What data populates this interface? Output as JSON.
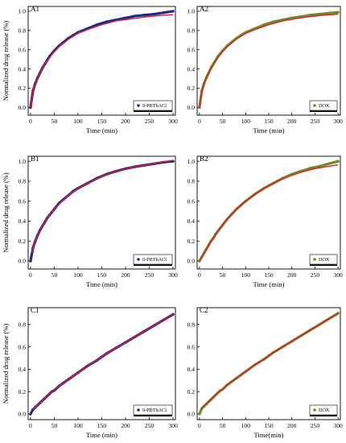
{
  "figure": {
    "colors": {
      "fit_line": "#e8192c",
      "series_blue": "#1c2a8a",
      "series_green": "#6b8e23",
      "axis": "#000000"
    },
    "x_ticks": [
      "0",
      "50",
      "100",
      "150",
      "200",
      "250",
      "300"
    ],
    "y_ticks_A": [
      "0.0",
      "0.2",
      "0.4",
      "0.6",
      "0.8",
      "1.0"
    ],
    "y_ticks_BC": [
      "0.0",
      "0.2",
      "0.4",
      "0.6",
      "0.8",
      "1.0"
    ]
  },
  "chart_data": [
    {
      "panel": "A1",
      "type": "scatter",
      "xlabel": "Time (min)",
      "ylabel": "Normalized drug release (%)",
      "xlim": [
        -5,
        305
      ],
      "ylim": [
        -0.08,
        1.05
      ],
      "series": [
        {
          "name": "9-PBThACl",
          "role": "data",
          "color": "#1c2a8a",
          "x": [
            0,
            5,
            10,
            15,
            20,
            25,
            30,
            35,
            40,
            45,
            50,
            60,
            70,
            80,
            90,
            100,
            120,
            140,
            160,
            180,
            200,
            220,
            240,
            260,
            280,
            300
          ],
          "y": [
            0.0,
            0.17,
            0.25,
            0.31,
            0.36,
            0.41,
            0.45,
            0.49,
            0.53,
            0.56,
            0.59,
            0.64,
            0.68,
            0.72,
            0.75,
            0.78,
            0.82,
            0.86,
            0.89,
            0.91,
            0.93,
            0.95,
            0.96,
            0.97,
            0.985,
            1.0
          ]
        },
        {
          "role": "fit",
          "color": "#e8192c",
          "x": [
            0,
            5,
            10,
            15,
            20,
            25,
            30,
            40,
            50,
            60,
            80,
            100,
            120,
            150,
            180,
            210,
            240,
            270,
            300
          ],
          "y": [
            0.0,
            0.17,
            0.25,
            0.31,
            0.36,
            0.41,
            0.45,
            0.52,
            0.58,
            0.63,
            0.71,
            0.77,
            0.81,
            0.86,
            0.9,
            0.92,
            0.94,
            0.955,
            0.965
          ]
        }
      ]
    },
    {
      "panel": "A2",
      "type": "scatter",
      "xlabel": "Time (min)",
      "ylabel": "",
      "xlim": [
        -5,
        305
      ],
      "ylim": [
        -0.08,
        1.05
      ],
      "series": [
        {
          "name": "DOX",
          "role": "data",
          "color": "#6b8e23",
          "x": [
            0,
            5,
            10,
            15,
            20,
            25,
            30,
            35,
            40,
            45,
            50,
            60,
            70,
            80,
            90,
            100,
            120,
            140,
            160,
            180,
            200,
            220,
            240,
            260,
            280,
            300
          ],
          "y": [
            0.0,
            0.17,
            0.25,
            0.31,
            0.36,
            0.41,
            0.45,
            0.49,
            0.53,
            0.56,
            0.59,
            0.64,
            0.68,
            0.72,
            0.75,
            0.78,
            0.82,
            0.86,
            0.89,
            0.91,
            0.93,
            0.945,
            0.96,
            0.97,
            0.98,
            0.99
          ]
        },
        {
          "role": "fit",
          "color": "#e8192c",
          "x": [
            0,
            5,
            10,
            15,
            20,
            25,
            30,
            40,
            50,
            60,
            80,
            100,
            120,
            150,
            180,
            210,
            240,
            270,
            300
          ],
          "y": [
            0.0,
            0.17,
            0.25,
            0.31,
            0.36,
            0.41,
            0.45,
            0.52,
            0.58,
            0.63,
            0.71,
            0.77,
            0.81,
            0.86,
            0.9,
            0.925,
            0.945,
            0.96,
            0.97
          ]
        }
      ]
    },
    {
      "panel": "B1",
      "type": "scatter",
      "xlabel": "Time (min)",
      "ylabel": "Normalized drug release (%)",
      "xlim": [
        -5,
        305
      ],
      "ylim": [
        -0.08,
        1.05
      ],
      "series": [
        {
          "name": "9-PBThACl",
          "role": "data",
          "color": "#1c2a8a",
          "x": [
            0,
            5,
            10,
            15,
            20,
            25,
            30,
            35,
            40,
            45,
            50,
            60,
            70,
            80,
            90,
            100,
            120,
            140,
            160,
            180,
            200,
            220,
            240,
            260,
            280,
            300
          ],
          "y": [
            0.0,
            0.13,
            0.2,
            0.26,
            0.31,
            0.35,
            0.39,
            0.43,
            0.46,
            0.49,
            0.52,
            0.58,
            0.62,
            0.66,
            0.7,
            0.73,
            0.78,
            0.83,
            0.87,
            0.9,
            0.925,
            0.945,
            0.96,
            0.975,
            0.99,
            1.0
          ]
        },
        {
          "role": "fit",
          "color": "#e8192c",
          "x": [
            2,
            5,
            10,
            15,
            20,
            25,
            30,
            40,
            50,
            60,
            80,
            100,
            120,
            150,
            180,
            210,
            240,
            270,
            300
          ],
          "y": [
            0.08,
            0.13,
            0.2,
            0.26,
            0.31,
            0.35,
            0.39,
            0.46,
            0.52,
            0.57,
            0.66,
            0.73,
            0.78,
            0.85,
            0.9,
            0.935,
            0.96,
            0.985,
            1.01
          ]
        }
      ]
    },
    {
      "panel": "B2",
      "type": "scatter",
      "xlabel": "Time (min)",
      "ylabel": "",
      "xlim": [
        -5,
        305
      ],
      "ylim": [
        -0.08,
        1.05
      ],
      "series": [
        {
          "name": "DOX",
          "role": "data",
          "color": "#6b8e23",
          "x": [
            0,
            5,
            10,
            15,
            20,
            25,
            30,
            35,
            40,
            45,
            50,
            60,
            70,
            80,
            90,
            100,
            120,
            140,
            160,
            180,
            200,
            220,
            240,
            260,
            280,
            300
          ],
          "y": [
            0.0,
            0.04,
            0.08,
            0.12,
            0.16,
            0.2,
            0.23,
            0.27,
            0.3,
            0.33,
            0.36,
            0.42,
            0.47,
            0.52,
            0.56,
            0.6,
            0.67,
            0.73,
            0.78,
            0.83,
            0.87,
            0.9,
            0.93,
            0.95,
            0.975,
            1.0
          ]
        },
        {
          "role": "fit",
          "color": "#e8192c",
          "x": [
            0,
            5,
            10,
            20,
            30,
            40,
            50,
            60,
            80,
            100,
            120,
            140,
            160,
            180,
            200,
            220,
            240,
            260,
            280,
            300
          ],
          "y": [
            0.0,
            0.04,
            0.08,
            0.16,
            0.23,
            0.3,
            0.36,
            0.42,
            0.52,
            0.6,
            0.67,
            0.73,
            0.78,
            0.82,
            0.86,
            0.89,
            0.915,
            0.935,
            0.95,
            0.965
          ]
        }
      ]
    },
    {
      "panel": "C1",
      "type": "scatter",
      "xlabel": "Time (min)",
      "ylabel": "Normalized drug release (%)",
      "xlim": [
        -5,
        305
      ],
      "ylim": [
        -0.05,
        0.95
      ],
      "series": [
        {
          "name": "9-PBThACl",
          "role": "data",
          "color": "#1c2a8a",
          "x": [
            0,
            5,
            10,
            15,
            20,
            25,
            30,
            35,
            40,
            45,
            50,
            60,
            70,
            80,
            90,
            100,
            120,
            140,
            160,
            180,
            200,
            220,
            240,
            260,
            280,
            300
          ],
          "y": [
            0.0,
            0.04,
            0.06,
            0.08,
            0.1,
            0.12,
            0.14,
            0.16,
            0.18,
            0.2,
            0.21,
            0.25,
            0.28,
            0.31,
            0.34,
            0.37,
            0.43,
            0.48,
            0.54,
            0.59,
            0.64,
            0.69,
            0.74,
            0.79,
            0.84,
            0.89
          ]
        },
        {
          "role": "fit",
          "color": "#e8192c",
          "x": [
            5,
            10,
            15,
            20,
            30,
            40,
            50,
            60,
            80,
            100,
            120,
            140,
            160,
            180,
            200,
            220,
            240,
            260,
            280,
            300
          ],
          "y": [
            0.04,
            0.06,
            0.08,
            0.1,
            0.14,
            0.18,
            0.21,
            0.25,
            0.31,
            0.37,
            0.43,
            0.48,
            0.54,
            0.59,
            0.64,
            0.69,
            0.74,
            0.79,
            0.84,
            0.89
          ]
        }
      ]
    },
    {
      "panel": "C2",
      "type": "scatter",
      "xlabel": "Time(min)",
      "ylabel": "",
      "xlim": [
        -5,
        305
      ],
      "ylim": [
        -0.05,
        0.95
      ],
      "series": [
        {
          "name": "DOX",
          "role": "data",
          "color": "#6b8e23",
          "x": [
            0,
            5,
            10,
            15,
            20,
            25,
            30,
            35,
            40,
            45,
            50,
            60,
            70,
            80,
            90,
            100,
            120,
            140,
            160,
            180,
            200,
            220,
            240,
            260,
            280,
            300
          ],
          "y": [
            0.0,
            0.05,
            0.07,
            0.09,
            0.11,
            0.13,
            0.15,
            0.17,
            0.19,
            0.21,
            0.22,
            0.26,
            0.29,
            0.32,
            0.35,
            0.38,
            0.44,
            0.49,
            0.55,
            0.6,
            0.65,
            0.7,
            0.75,
            0.8,
            0.85,
            0.9
          ]
        },
        {
          "role": "fit",
          "color": "#e8192c",
          "x": [
            5,
            10,
            15,
            20,
            30,
            40,
            50,
            60,
            80,
            100,
            120,
            140,
            160,
            180,
            200,
            220,
            240,
            260,
            280,
            300
          ],
          "y": [
            0.05,
            0.07,
            0.09,
            0.11,
            0.15,
            0.19,
            0.22,
            0.26,
            0.32,
            0.38,
            0.44,
            0.49,
            0.55,
            0.6,
            0.65,
            0.7,
            0.75,
            0.8,
            0.85,
            0.9
          ]
        }
      ]
    }
  ]
}
